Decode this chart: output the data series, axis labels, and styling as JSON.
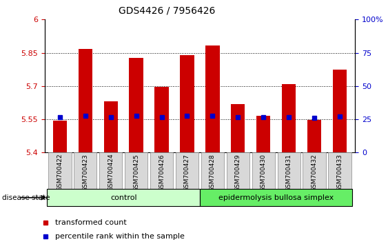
{
  "title": "GDS4426 / 7956426",
  "samples": [
    "GSM700422",
    "GSM700423",
    "GSM700424",
    "GSM700425",
    "GSM700426",
    "GSM700427",
    "GSM700428",
    "GSM700429",
    "GSM700430",
    "GSM700431",
    "GSM700432",
    "GSM700433"
  ],
  "bar_tops": [
    5.543,
    5.867,
    5.63,
    5.828,
    5.695,
    5.838,
    5.882,
    5.62,
    5.565,
    5.71,
    5.548,
    5.775
  ],
  "bar_base": 5.4,
  "blue_yvals": [
    5.56,
    5.566,
    5.56,
    5.566,
    5.56,
    5.566,
    5.566,
    5.56,
    5.558,
    5.558,
    5.556,
    5.562
  ],
  "ylim_left": [
    5.4,
    6.0
  ],
  "yticks_left": [
    5.4,
    5.55,
    5.7,
    5.85,
    6.0
  ],
  "ytick_labels_left": [
    "5.4",
    "5.55",
    "5.7",
    "5.85",
    "6"
  ],
  "ylim_right": [
    0,
    100
  ],
  "yticks_right": [
    0,
    25,
    50,
    75,
    100
  ],
  "ytick_labels_right": [
    "0",
    "25",
    "50",
    "75",
    "100%"
  ],
  "grid_yvals": [
    5.55,
    5.7,
    5.85
  ],
  "bar_color": "#cc0000",
  "blue_color": "#0000cc",
  "group1_label": "control",
  "group2_label": "epidermolysis bullosa simplex",
  "group1_indices": [
    0,
    1,
    2,
    3,
    4,
    5
  ],
  "group2_indices": [
    6,
    7,
    8,
    9,
    10,
    11
  ],
  "group1_color": "#ccffcc",
  "group2_color": "#66ee66",
  "disease_state_label": "disease state",
  "legend_red_label": "transformed count",
  "legend_blue_label": "percentile rank within the sample",
  "tick_label_bg": "#d8d8d8",
  "bar_width": 0.55,
  "blue_marker_size": 4,
  "figsize": [
    5.63,
    3.54
  ],
  "dpi": 100
}
